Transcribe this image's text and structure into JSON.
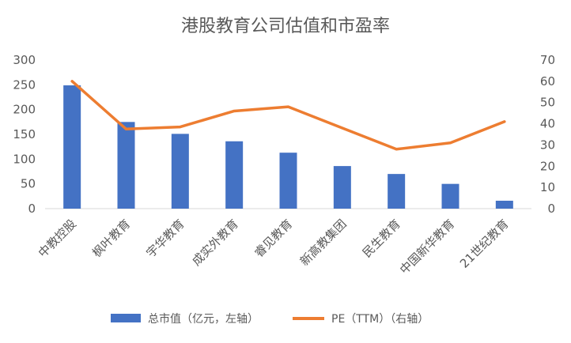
{
  "chart_data": {
    "type": "bar+line",
    "title": "港股教育公司估值和市盈率",
    "categories": [
      "中教控股",
      "枫叶教育",
      "宇华教育",
      "成实外教育",
      "睿见教育",
      "新高教集团",
      "民生教育",
      "中国新华教育",
      "21世纪教育"
    ],
    "series": [
      {
        "name": "总市值（亿元，左轴）",
        "type": "bar",
        "axis": "left",
        "color": "#4472C4",
        "values": [
          249,
          175,
          151,
          136,
          113,
          86,
          70,
          50,
          16
        ]
      },
      {
        "name": "PE（TTM）（右轴）",
        "type": "line",
        "axis": "right",
        "color": "#ED7D31",
        "values": [
          60,
          37.5,
          38.5,
          46,
          48,
          38,
          28,
          31,
          41
        ]
      }
    ],
    "left_axis": {
      "min": 0,
      "max": 300,
      "step": 50
    },
    "right_axis": {
      "min": 0,
      "max": 70,
      "step": 10
    },
    "grid": false,
    "legend_position": "bottom"
  }
}
